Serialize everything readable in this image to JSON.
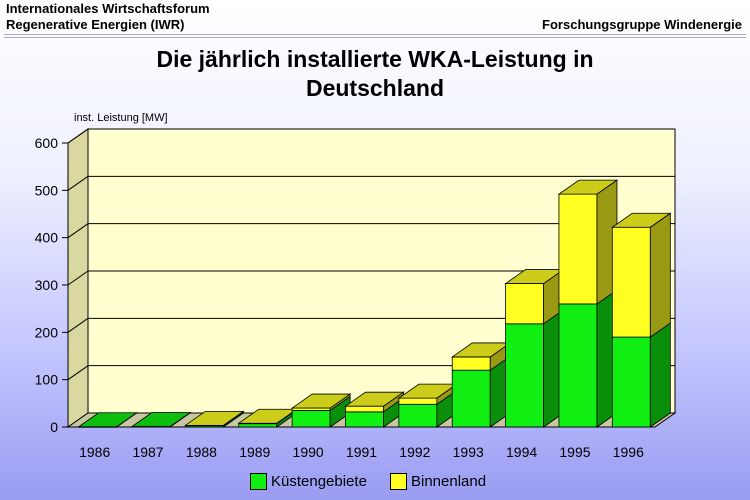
{
  "header": {
    "line1": "Internationales Wirtschaftsforum",
    "line2": "Regenerative Energien (IWR)",
    "right": "Forschungsgruppe Windenergie"
  },
  "colors": {
    "kuestengebiete": "#11ee11",
    "binnenland": "#ffff22",
    "plot_back": "#ffffd0"
  },
  "chart_data": {
    "type": "bar",
    "stacked": true,
    "title_line1": "Die jährlich installierte WKA-Leistung in",
    "title_line2": "Deutschland",
    "ylabel": "inst. Leistung [MW]",
    "ylim": [
      0,
      600
    ],
    "yticks": [
      "0",
      "100",
      "200",
      "300",
      "400",
      "500",
      "600"
    ],
    "categories": [
      "1986",
      "1987",
      "1988",
      "1989",
      "1990",
      "1991",
      "1992",
      "1993",
      "1994",
      "1995",
      "1996"
    ],
    "series": [
      {
        "name": "Küstengebiete",
        "values": [
          0.5,
          1,
          3,
          7,
          35,
          32,
          48,
          120,
          218,
          260,
          190
        ]
      },
      {
        "name": "Binnenland",
        "values": [
          0,
          0,
          0.5,
          1,
          5,
          12,
          13,
          28,
          85,
          232,
          232
        ]
      }
    ],
    "legend_position": "bottom",
    "grid": true
  }
}
